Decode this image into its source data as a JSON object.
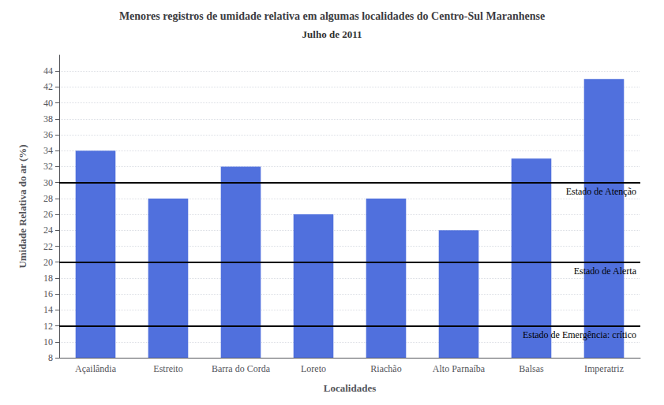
{
  "chart_data": {
    "type": "bar",
    "title": "Menores registros de umidade relativa em algumas localidades do Centro-Sul Maranhense",
    "subtitle": "Julho de 2011",
    "xlabel": "Localidades",
    "ylabel": "Umidade Relativa do ar (%)",
    "categories": [
      "Açailândia",
      "Estreito",
      "Barra do Corda",
      "Loreto",
      "Riachão",
      "Alto Parnaíba",
      "Balsas",
      "Imperatriz"
    ],
    "values": [
      34,
      28,
      32,
      26,
      28,
      24,
      33,
      43
    ],
    "ylim": [
      8,
      46
    ],
    "yticks": [
      8,
      10,
      12,
      14,
      16,
      18,
      20,
      22,
      24,
      26,
      28,
      30,
      32,
      34,
      36,
      38,
      40,
      42,
      44
    ],
    "grid": true,
    "hlines": [
      {
        "y": 30,
        "label": "Estado de Atenção"
      },
      {
        "y": 20,
        "label": "Estado de Alerta"
      },
      {
        "y": 12,
        "label": "Estado de Emergência: crítico"
      }
    ]
  }
}
